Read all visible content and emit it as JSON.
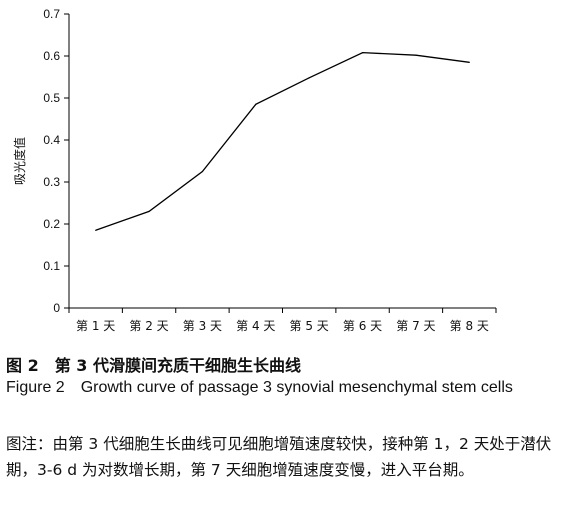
{
  "chart_data": {
    "type": "line",
    "ylabel": "吸光度值",
    "xlabel": "",
    "categories": [
      "第 1 天",
      "第 2 天",
      "第 3 天",
      "第 4 天",
      "第 5 天",
      "第 6 天",
      "第 7 天",
      "第 8 天"
    ],
    "series": [
      {
        "values": [
          0.185,
          0.23,
          0.325,
          0.485,
          0.548,
          0.608,
          0.602,
          0.585
        ]
      }
    ],
    "ylim": [
      0,
      0.7
    ],
    "yticks": [
      "0",
      "0.1",
      "0.2",
      "0.3",
      "0.4",
      "0.5",
      "0.6",
      "0.7"
    ],
    "grid": false,
    "legend": "none",
    "line_color": "#000000"
  },
  "caption": {
    "title_cn": "图 2　第 3 代滑膜间充质干细胞生长曲线",
    "title_en": "Figure 2　Growth curve of passage 3 synovial mesenchymal stem cells",
    "note_cn": "图注：由第 3 代细胞生长曲线可见细胞增殖速度较快，接种第 1，2 天处于潜伏期，3-6 d 为对数增长期，第 7 天细胞增殖速度变慢，进入平台期。"
  }
}
